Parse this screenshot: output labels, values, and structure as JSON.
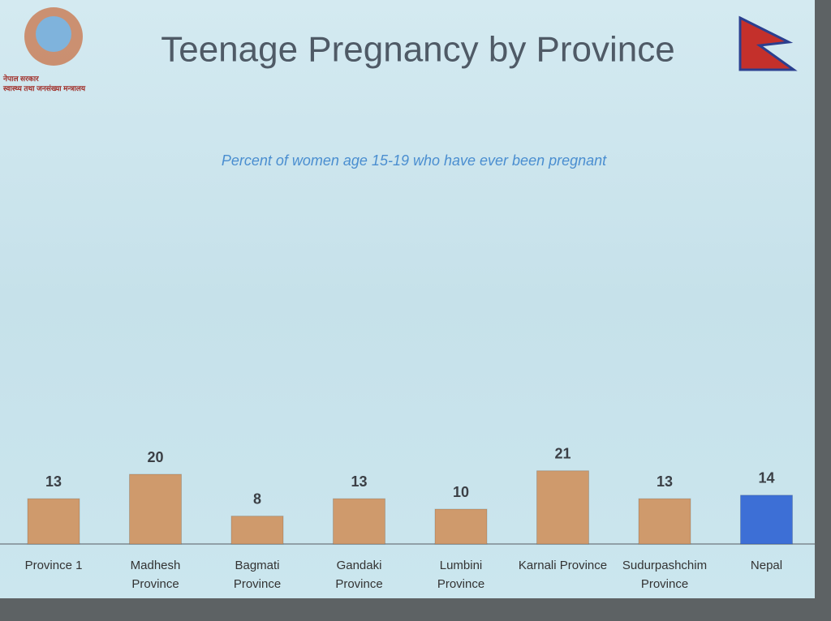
{
  "chart_data": {
    "type": "bar",
    "title": "Teenage Pregnancy by Province",
    "subtitle": "Percent of women age 15-19 who have ever been pregnant",
    "logo_text": [
      "नेपाल सरकार",
      "स्वास्थ्य तथा जनसंख्या मन्त्रालय"
    ],
    "categories": [
      "Province 1",
      "Madhesh Province",
      "Bagmati Province",
      "Gandaki Province",
      "Lumbini Province",
      "Karnali Province",
      "Sudurpashchim Province",
      "Nepal"
    ],
    "values": [
      13,
      20,
      8,
      13,
      10,
      21,
      13,
      14
    ],
    "colors": [
      "#cf9a6c",
      "#cf9a6c",
      "#cf9a6c",
      "#cf9a6c",
      "#cf9a6c",
      "#cf9a6c",
      "#cf9a6c",
      "#3d6fd6"
    ]
  }
}
